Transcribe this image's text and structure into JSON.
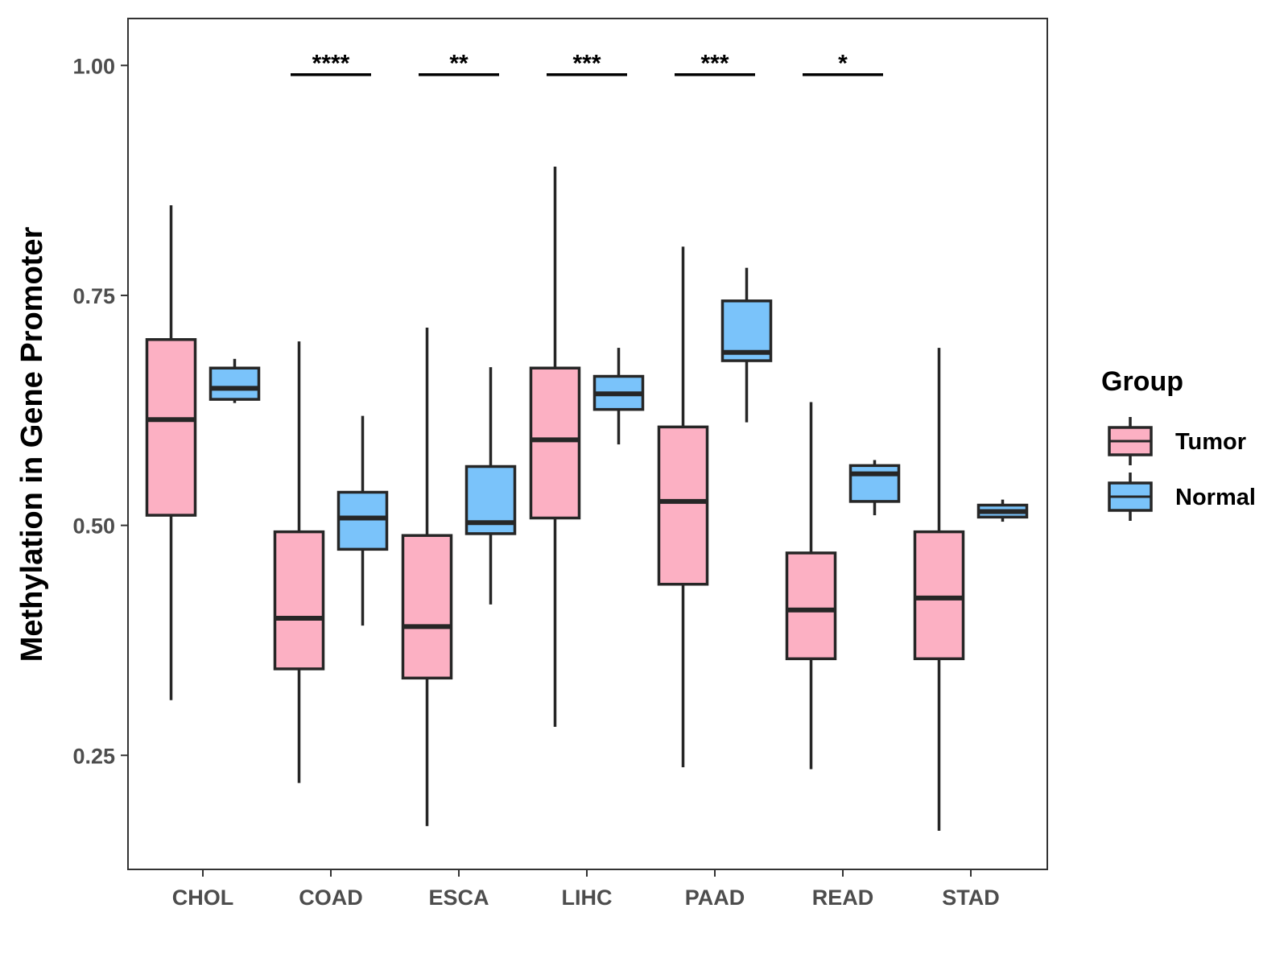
{
  "chart_data": {
    "type": "boxplot",
    "ylabel": "Methylation in Gene Promoter",
    "xlabel": "",
    "ylim": [
      0.126,
      1.051
    ],
    "yticks": [
      0.25,
      0.5,
      0.75,
      1.0
    ],
    "ytick_labels": [
      "0.25",
      "0.50",
      "0.75",
      "1.00"
    ],
    "categories": [
      "CHOL",
      "COAD",
      "ESCA",
      "LIHC",
      "PAAD",
      "READ",
      "STAD"
    ],
    "legend": {
      "title": "Group",
      "position": "right"
    },
    "series": [
      {
        "name": "Tumor",
        "color": "#FCB0C3",
        "boxes": [
          {
            "min": 0.31,
            "q1": 0.511,
            "median": 0.615,
            "q3": 0.702,
            "max": 0.848
          },
          {
            "min": 0.22,
            "q1": 0.344,
            "median": 0.399,
            "q3": 0.493,
            "max": 0.7
          },
          {
            "min": 0.173,
            "q1": 0.334,
            "median": 0.39,
            "q3": 0.489,
            "max": 0.715
          },
          {
            "min": 0.281,
            "q1": 0.508,
            "median": 0.593,
            "q3": 0.671,
            "max": 0.89
          },
          {
            "min": 0.237,
            "q1": 0.436,
            "median": 0.526,
            "q3": 0.607,
            "max": 0.803
          },
          {
            "min": 0.235,
            "q1": 0.355,
            "median": 0.408,
            "q3": 0.47,
            "max": 0.634
          },
          {
            "min": 0.168,
            "q1": 0.355,
            "median": 0.421,
            "q3": 0.493,
            "max": 0.693
          }
        ]
      },
      {
        "name": "Normal",
        "color": "#7AC3FA",
        "boxes": [
          {
            "min": 0.633,
            "q1": 0.637,
            "median": 0.649,
            "q3": 0.671,
            "max": 0.681
          },
          {
            "min": 0.391,
            "q1": 0.474,
            "median": 0.508,
            "q3": 0.536,
            "max": 0.619
          },
          {
            "min": 0.414,
            "q1": 0.491,
            "median": 0.503,
            "q3": 0.564,
            "max": 0.672
          },
          {
            "min": 0.588,
            "q1": 0.626,
            "median": 0.643,
            "q3": 0.662,
            "max": 0.693
          },
          {
            "min": 0.612,
            "q1": 0.679,
            "median": 0.688,
            "q3": 0.744,
            "max": 0.78
          },
          {
            "min": 0.511,
            "q1": 0.526,
            "median": 0.556,
            "q3": 0.565,
            "max": 0.571
          },
          {
            "min": 0.504,
            "q1": 0.509,
            "median": 0.515,
            "q3": 0.522,
            "max": 0.528
          }
        ]
      }
    ],
    "significance": [
      {
        "category": "COAD",
        "label": "****",
        "y": 0.99
      },
      {
        "category": "ESCA",
        "label": "**",
        "y": 0.99
      },
      {
        "category": "LIHC",
        "label": "***",
        "y": 0.99
      },
      {
        "category": "PAAD",
        "label": "***",
        "y": 0.99
      },
      {
        "category": "READ",
        "label": "*",
        "y": 0.99
      }
    ]
  }
}
